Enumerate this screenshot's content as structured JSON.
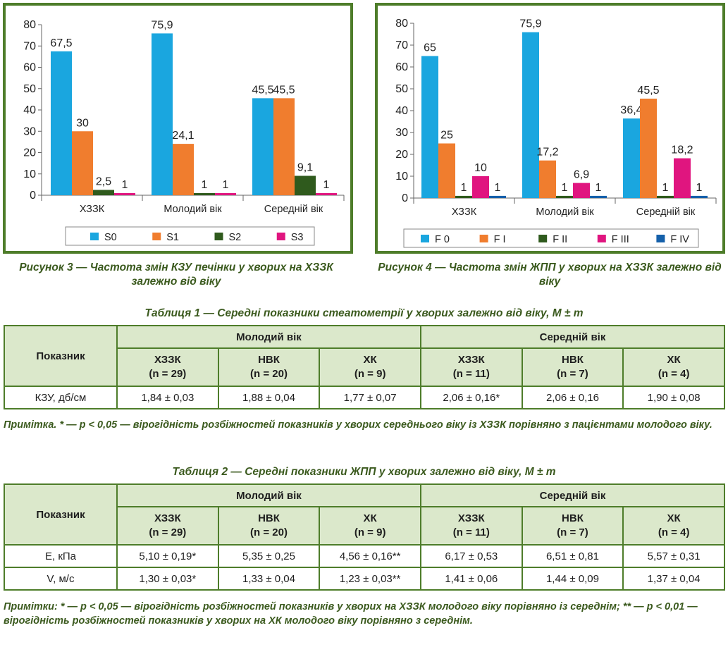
{
  "chart_data": [
    {
      "type": "bar",
      "caption": "Рисунок 3 — Частота змін КЗУ печінки у хворих на ХЗЗК залежно від віку",
      "categories": [
        "ХЗЗК",
        "Молодий вік",
        "Середній вік"
      ],
      "series": [
        {
          "name": "S0",
          "values": [
            67.5,
            75.9,
            45.5
          ],
          "labels": [
            "67,5",
            "75,9",
            "45,5"
          ],
          "color": "#1aa6df"
        },
        {
          "name": "S1",
          "values": [
            30,
            24.1,
            45.5
          ],
          "labels": [
            "30",
            "24,1",
            "45,5"
          ],
          "color": "#f07d2e"
        },
        {
          "name": "S2",
          "values": [
            2.5,
            1,
            9.1
          ],
          "labels": [
            "2,5",
            "1",
            "9,1"
          ],
          "color": "#2f5a1d"
        },
        {
          "name": "S3",
          "values": [
            1,
            1,
            1
          ],
          "labels": [
            "1",
            "1",
            "1"
          ],
          "color": "#e0157f"
        }
      ],
      "ylim": [
        0,
        80
      ],
      "yticks": [
        0,
        10,
        20,
        30,
        40,
        50,
        60,
        70,
        80
      ],
      "grid": false,
      "legend": "bottom"
    },
    {
      "type": "bar",
      "caption": "Рисунок 4 — Частота змін ЖПП у хворих на ХЗЗК залежно від віку",
      "categories": [
        "ХЗЗК",
        "Молодий вік",
        "Середній вік"
      ],
      "series": [
        {
          "name": "F 0",
          "values": [
            65,
            75.9,
            36.4
          ],
          "labels": [
            "65",
            "75,9",
            "36,4"
          ],
          "color": "#1aa6df"
        },
        {
          "name": "F I",
          "values": [
            25,
            17.2,
            45.5
          ],
          "labels": [
            "25",
            "17,2",
            "45,5"
          ],
          "color": "#f07d2e"
        },
        {
          "name": "F II",
          "values": [
            1,
            1,
            1
          ],
          "labels": [
            "1",
            "1",
            "1"
          ],
          "color": "#2f5a1d"
        },
        {
          "name": "F III",
          "values": [
            10,
            6.9,
            18.2
          ],
          "labels": [
            "10",
            "6,9",
            "18,2"
          ],
          "color": "#e0157f"
        },
        {
          "name": "F IV",
          "values": [
            1,
            1,
            1
          ],
          "labels": [
            "1",
            "1",
            "1"
          ],
          "color": "#1560aa"
        }
      ],
      "ylim": [
        0,
        80
      ],
      "yticks": [
        0,
        10,
        20,
        30,
        40,
        50,
        60,
        70,
        80
      ],
      "grid": false,
      "legend": "bottom"
    }
  ],
  "table1": {
    "title": "Таблиця 1 — Середні показники стеатометрії у хворих залежно від віку, M ± m",
    "row_header": "Показник",
    "groups": [
      "Молодий вік",
      "Середній вік"
    ],
    "columns": [
      {
        "name": "ХЗЗК",
        "n": "(n = 29)"
      },
      {
        "name": "НВК",
        "n": "(n = 20)"
      },
      {
        "name": "ХК",
        "n": "(n = 9)"
      },
      {
        "name": "ХЗЗК",
        "n": "(n = 11)"
      },
      {
        "name": "НВК",
        "n": "(n = 7)"
      },
      {
        "name": "ХК",
        "n": "(n = 4)"
      }
    ],
    "rows": [
      {
        "label": "КЗУ, дб/см",
        "cells": [
          "1,84 ± 0,03",
          "1,88 ± 0,04",
          "1,77 ± 0,07",
          "2,06 ± 0,16*",
          "2,06 ± 0,16",
          "1,90 ± 0,08"
        ]
      }
    ],
    "note": "Примітка. * — p < 0,05 — вірогідність розбіжностей показників у хворих середнього віку із ХЗЗК порівняно з пацієнтами молодого віку."
  },
  "table2": {
    "title": "Таблиця 2 — Середні показники ЖПП у хворих залежно від віку, M ± m",
    "row_header": "Показник",
    "groups": [
      "Молодий вік",
      "Середній вік"
    ],
    "columns": [
      {
        "name": "ХЗЗК",
        "n": "(n = 29)"
      },
      {
        "name": "НВК",
        "n": "(n = 20)"
      },
      {
        "name": "ХК",
        "n": "(n = 9)"
      },
      {
        "name": "ХЗЗК",
        "n": "(n = 11)"
      },
      {
        "name": "НВК",
        "n": "(n = 7)"
      },
      {
        "name": "ХК",
        "n": "(n = 4)"
      }
    ],
    "rows": [
      {
        "label": "E, кПа",
        "cells": [
          "5,10 ± 0,19*",
          "5,35 ± 0,25",
          "4,56 ± 0,16**",
          "6,17 ± 0,53",
          "6,51 ± 0,81",
          "5,57 ± 0,31"
        ]
      },
      {
        "label": "V, м/с",
        "cells": [
          "1,30 ± 0,03*",
          "1,33 ± 0,04",
          "1,23 ± 0,03**",
          "1,41 ± 0,06",
          "1,44 ± 0,09",
          "1,37 ± 0,04"
        ]
      }
    ],
    "note": "Примітки: * — p < 0,05 — вірогідність розбіжностей показників у хворих на ХЗЗК молодого віку порівняно із середнім; ** — p < 0,01 — вірогідність розбіжностей показників у хворих на ХК молодого віку порівняно з середнім."
  }
}
